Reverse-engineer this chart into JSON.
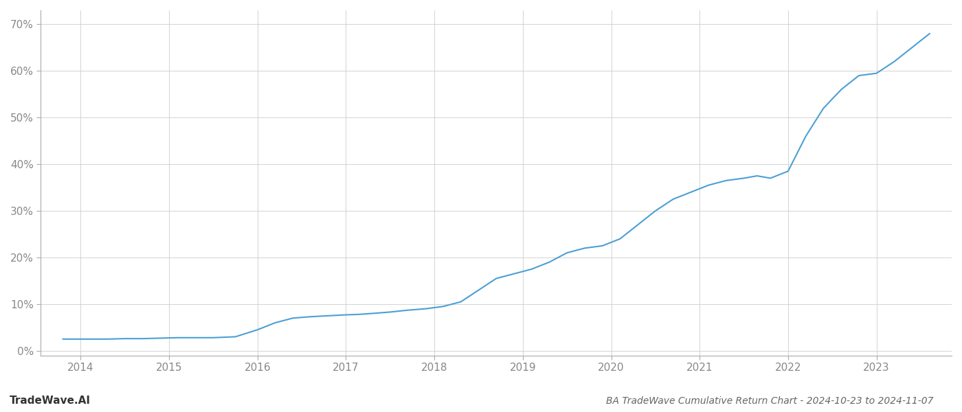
{
  "title": "BA TradeWave Cumulative Return Chart - 2024-10-23 to 2024-11-07",
  "watermark": "TradeWave.AI",
  "x_years": [
    2014,
    2015,
    2016,
    2017,
    2018,
    2019,
    2020,
    2021,
    2022,
    2023
  ],
  "x_values": [
    2013.8,
    2014.0,
    2014.15,
    2014.3,
    2014.5,
    2014.7,
    2014.9,
    2015.1,
    2015.3,
    2015.5,
    2015.75,
    2016.0,
    2016.2,
    2016.4,
    2016.6,
    2016.8,
    2017.0,
    2017.15,
    2017.3,
    2017.5,
    2017.7,
    2017.9,
    2018.1,
    2018.3,
    2018.5,
    2018.7,
    2018.9,
    2019.1,
    2019.3,
    2019.5,
    2019.7,
    2019.9,
    2020.1,
    2020.3,
    2020.5,
    2020.7,
    2020.9,
    2021.1,
    2021.3,
    2021.5,
    2021.65,
    2021.8,
    2022.0,
    2022.2,
    2022.4,
    2022.6,
    2022.8,
    2023.0,
    2023.2,
    2023.4,
    2023.6
  ],
  "y_values": [
    2.5,
    2.5,
    2.5,
    2.5,
    2.6,
    2.6,
    2.7,
    2.8,
    2.8,
    2.8,
    3.0,
    4.5,
    6.0,
    7.0,
    7.3,
    7.5,
    7.7,
    7.8,
    8.0,
    8.3,
    8.7,
    9.0,
    9.5,
    10.5,
    13.0,
    15.5,
    16.5,
    17.5,
    19.0,
    21.0,
    22.0,
    22.5,
    24.0,
    27.0,
    30.0,
    32.5,
    34.0,
    35.5,
    36.5,
    37.0,
    37.5,
    37.0,
    38.5,
    46.0,
    52.0,
    56.0,
    59.0,
    59.5,
    62.0,
    65.0,
    68.0
  ],
  "line_color": "#4b9fd5",
  "line_width": 1.5,
  "background_color": "#ffffff",
  "grid_color": "#cccccc",
  "tick_color": "#888888",
  "spine_color": "#aaaaaa",
  "title_color": "#666666",
  "watermark_color": "#333333",
  "ylim": [
    -1,
    73
  ],
  "yticks": [
    0,
    10,
    20,
    30,
    40,
    50,
    60,
    70
  ],
  "xlim": [
    2013.55,
    2023.85
  ],
  "title_fontsize": 10,
  "watermark_fontsize": 11,
  "tick_fontsize": 11
}
